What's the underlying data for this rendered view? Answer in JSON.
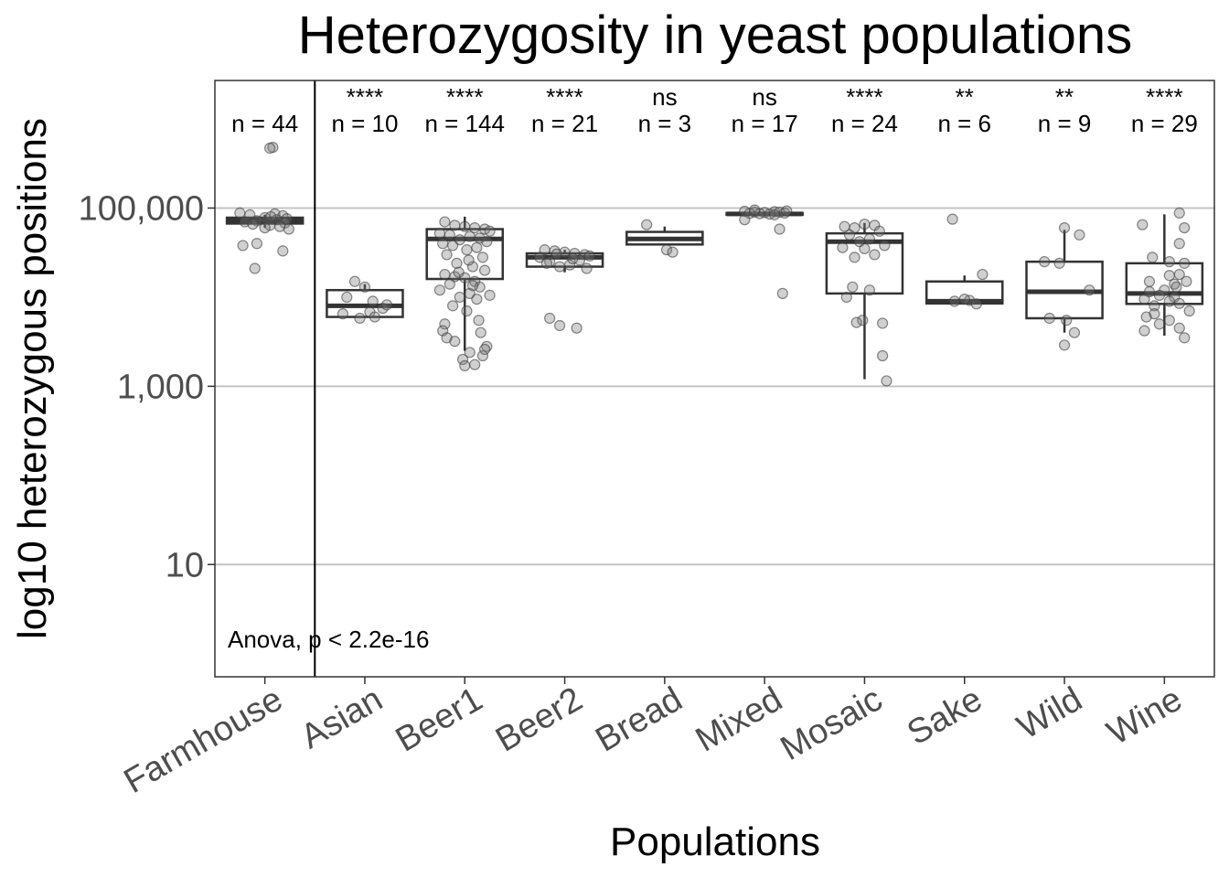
{
  "chart_data": {
    "type": "boxplot",
    "title": "Heterozygosity in yeast populations",
    "xlabel": "Populations",
    "ylabel": "log10 heterozygous positions",
    "y_scale": "log10",
    "ylim": [
      0.55,
      2700000
    ],
    "y_ticks": [
      {
        "value": 10,
        "label": "10"
      },
      {
        "value": 1000,
        "label": "1,000"
      },
      {
        "value": 100000,
        "label": "100,000"
      }
    ],
    "grid": "horizontal major",
    "reference_line_after": "Farmhouse",
    "test_label": "Anova, p < 2.2e-16",
    "groups": [
      {
        "name": "Farmhouse",
        "n_label": "n = 44",
        "sig": "",
        "q1": 67000,
        "median": 72000,
        "q3": 78000,
        "whisker_low": 60000,
        "whisker_high": 84000,
        "points": [
          [
            0.08,
            480000
          ],
          [
            0.05,
            470000
          ],
          [
            -0.25,
            88000
          ],
          [
            -0.15,
            84000
          ],
          [
            0.1,
            86000
          ],
          [
            0.18,
            82000
          ],
          [
            0.22,
            76000
          ],
          [
            -0.2,
            70000
          ],
          [
            0.0,
            78000
          ],
          [
            0.12,
            74000
          ],
          [
            -0.08,
            72000
          ],
          [
            0.2,
            68000
          ],
          [
            -0.12,
            66000
          ],
          [
            0.05,
            64000
          ],
          [
            0.15,
            62000
          ],
          [
            -0.22,
            38000
          ],
          [
            -0.08,
            40000
          ],
          [
            0.18,
            33000
          ],
          [
            -0.1,
            21000
          ],
          [
            0.0,
            60000
          ],
          [
            0.24,
            58000
          ],
          [
            0.06,
            80000
          ]
        ]
      },
      {
        "name": "Asian",
        "n_label": "n = 10",
        "sig": "****",
        "q1": 6000,
        "median": 8000,
        "q3": 12000,
        "whisker_low": 6000,
        "whisker_high": 14000,
        "points": [
          [
            -0.1,
            15000
          ],
          [
            0.0,
            13000
          ],
          [
            -0.22,
            6500
          ],
          [
            0.05,
            6800
          ],
          [
            0.1,
            6000
          ],
          [
            -0.05,
            5800
          ],
          [
            0.18,
            7500
          ],
          [
            0.22,
            8200
          ],
          [
            0.08,
            9000
          ],
          [
            -0.18,
            10000
          ]
        ]
      },
      {
        "name": "Beer1",
        "n_label": "n = 144",
        "sig": "****",
        "q1": 16000,
        "median": 45000,
        "q3": 58000,
        "whisker_low": 2500,
        "whisker_high": 80000,
        "points": [
          [
            -0.2,
            70000
          ],
          [
            -0.1,
            64000
          ],
          [
            0.0,
            62000
          ],
          [
            0.1,
            60000
          ],
          [
            0.2,
            58000
          ],
          [
            0.25,
            55000
          ],
          [
            -0.25,
            52000
          ],
          [
            -0.15,
            50000
          ],
          [
            0.05,
            48000
          ],
          [
            0.15,
            46000
          ],
          [
            -0.05,
            44000
          ],
          [
            0.22,
            42000
          ],
          [
            -0.22,
            40000
          ],
          [
            -0.12,
            38000
          ],
          [
            0.12,
            36000
          ],
          [
            0.02,
            34000
          ],
          [
            -0.18,
            30000
          ],
          [
            0.18,
            28000
          ],
          [
            -0.08,
            24000
          ],
          [
            0.08,
            22000
          ],
          [
            0.2,
            20000
          ],
          [
            -0.2,
            18000
          ],
          [
            -0.1,
            17000
          ],
          [
            0.0,
            16500
          ],
          [
            0.1,
            15000
          ],
          [
            -0.15,
            14000
          ],
          [
            0.15,
            13000
          ],
          [
            -0.25,
            12000
          ],
          [
            0.05,
            11000
          ],
          [
            0.25,
            10500
          ],
          [
            -0.05,
            10000
          ],
          [
            0.12,
            9500
          ],
          [
            -0.12,
            8000
          ],
          [
            0.02,
            7000
          ],
          [
            -0.2,
            5000
          ],
          [
            0.16,
            4000
          ],
          [
            -0.1,
            3200
          ],
          [
            0.22,
            2800
          ],
          [
            0.05,
            2400
          ],
          [
            -0.02,
            2000
          ],
          [
            0.18,
            2200
          ],
          [
            0.0,
            1700
          ],
          [
            0.1,
            1750
          ],
          [
            0.2,
            2600
          ],
          [
            -0.22,
            4200
          ],
          [
            -0.18,
            3500
          ],
          [
            0.14,
            5500
          ],
          [
            0.08,
            13500
          ],
          [
            -0.06,
            19000
          ],
          [
            0.04,
            26000
          ]
        ]
      },
      {
        "name": "Beer2",
        "n_label": "n = 21",
        "sig": "****",
        "q1": 22000,
        "median": 28000,
        "q3": 31000,
        "whisker_low": 19000,
        "whisker_high": 34000,
        "points": [
          [
            -0.2,
            34000
          ],
          [
            -0.1,
            33000
          ],
          [
            0.0,
            32000
          ],
          [
            0.1,
            31000
          ],
          [
            0.2,
            30000
          ],
          [
            0.25,
            29000
          ],
          [
            -0.25,
            28000
          ],
          [
            0.15,
            26000
          ],
          [
            -0.15,
            25000
          ],
          [
            0.05,
            23000
          ],
          [
            -0.05,
            22000
          ],
          [
            0.22,
            21000
          ],
          [
            -0.18,
            24000
          ],
          [
            0.08,
            27000
          ],
          [
            -0.08,
            30500
          ],
          [
            -0.15,
            5800
          ],
          [
            -0.05,
            4800
          ],
          [
            0.12,
            4500
          ]
        ]
      },
      {
        "name": "Bread",
        "n_label": "n = 3",
        "sig": "ns",
        "q1": 39000,
        "median": 45000,
        "q3": 54000,
        "whisker_low": 39000,
        "whisker_high": 62000,
        "points": [
          [
            -0.18,
            65000
          ],
          [
            0.02,
            34000
          ],
          [
            0.08,
            32000
          ]
        ]
      },
      {
        "name": "Mixed",
        "n_label": "n = 17",
        "sig": "ns",
        "q1": 84000,
        "median": 86000,
        "q3": 88000,
        "whisker_low": 82000,
        "whisker_high": 90000,
        "points": [
          [
            -0.2,
            92000
          ],
          [
            -0.1,
            90000
          ],
          [
            0.0,
            89000
          ],
          [
            0.1,
            91000
          ],
          [
            0.2,
            88000
          ],
          [
            0.15,
            90000
          ],
          [
            -0.15,
            87000
          ],
          [
            -0.05,
            86500
          ],
          [
            0.05,
            85500
          ],
          [
            -0.2,
            74000
          ],
          [
            0.15,
            58000
          ],
          [
            0.1,
            84000
          ],
          [
            0.22,
            93000
          ],
          [
            -0.1,
            95000
          ],
          [
            0.18,
            11000
          ]
        ]
      },
      {
        "name": "Mosaic",
        "n_label": "n = 24",
        "sig": "****",
        "q1": 11000,
        "median": 42000,
        "q3": 52000,
        "whisker_low": 1200,
        "whisker_high": 68000,
        "points": [
          [
            -0.2,
            62000
          ],
          [
            -0.1,
            60000
          ],
          [
            0.0,
            66000
          ],
          [
            0.1,
            64000
          ],
          [
            0.15,
            55000
          ],
          [
            -0.15,
            50000
          ],
          [
            0.05,
            45000
          ],
          [
            -0.05,
            42000
          ],
          [
            0.2,
            38000
          ],
          [
            -0.22,
            36000
          ],
          [
            0.1,
            30000
          ],
          [
            -0.1,
            28000
          ],
          [
            0.0,
            35000
          ],
          [
            -0.12,
            13000
          ],
          [
            0.05,
            12000
          ],
          [
            -0.18,
            10000
          ],
          [
            -0.02,
            5500
          ],
          [
            -0.08,
            5200
          ],
          [
            0.18,
            5100
          ],
          [
            0.18,
            2200
          ],
          [
            0.22,
            1150
          ]
        ]
      },
      {
        "name": "Sake",
        "n_label": "n = 6",
        "sig": "**",
        "q1": 8500,
        "median": 9000,
        "q3": 15000,
        "whisker_low": 8500,
        "whisker_high": 17500,
        "points": [
          [
            -0.12,
            75000
          ],
          [
            0.18,
            18000
          ],
          [
            -0.1,
            9000
          ],
          [
            0.05,
            9200
          ],
          [
            0.12,
            8400
          ],
          [
            0.0,
            9500
          ]
        ]
      },
      {
        "name": "Wild",
        "n_label": "n = 9",
        "sig": "**",
        "q1": 5800,
        "median": 11500,
        "q3": 25000,
        "whisker_low": 4000,
        "whisker_high": 57000,
        "points": [
          [
            0.0,
            60000
          ],
          [
            0.15,
            50000
          ],
          [
            -0.2,
            25000
          ],
          [
            -0.05,
            24000
          ],
          [
            0.25,
            12000
          ],
          [
            -0.15,
            5800
          ],
          [
            0.02,
            5500
          ],
          [
            0.1,
            4000
          ],
          [
            0.0,
            2900
          ]
        ]
      },
      {
        "name": "Wine",
        "n_label": "n = 29",
        "sig": "****",
        "q1": 8400,
        "median": 11000,
        "q3": 24000,
        "whisker_low": 3700,
        "whisker_high": 85000,
        "points": [
          [
            0.15,
            88000
          ],
          [
            -0.22,
            65000
          ],
          [
            0.2,
            60000
          ],
          [
            0.15,
            40000
          ],
          [
            -0.12,
            28000
          ],
          [
            0.05,
            25000
          ],
          [
            0.2,
            24000
          ],
          [
            0.15,
            18000
          ],
          [
            0.05,
            17500
          ],
          [
            -0.15,
            15000
          ],
          [
            0.22,
            15000
          ],
          [
            0.1,
            14000
          ],
          [
            0.0,
            12000
          ],
          [
            -0.05,
            10500
          ],
          [
            0.1,
            10000
          ],
          [
            -0.2,
            9500
          ],
          [
            0.05,
            9000
          ],
          [
            0.15,
            8500
          ],
          [
            -0.1,
            8000
          ],
          [
            0.25,
            7000
          ],
          [
            -0.18,
            6000
          ],
          [
            0.05,
            5500
          ],
          [
            -0.05,
            5000
          ],
          [
            0.15,
            4500
          ],
          [
            -0.2,
            4200
          ],
          [
            0.2,
            3500
          ],
          [
            -0.1,
            6500
          ],
          [
            0.12,
            13000
          ],
          [
            -0.15,
            11500
          ]
        ]
      }
    ]
  }
}
